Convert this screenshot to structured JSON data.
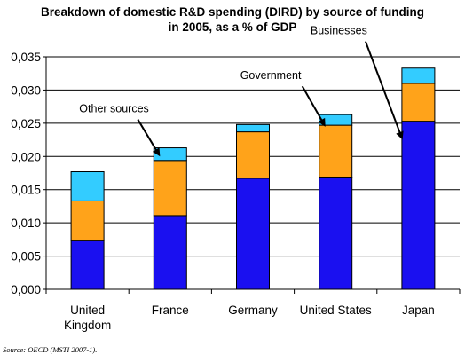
{
  "chart_data": {
    "type": "bar",
    "stacked": true,
    "title": [
      "Breakdown of domestic R&D spending (DIRD) by source of funding",
      "in 2005, as a % of GDP"
    ],
    "categories": [
      "United Kingdom",
      "France",
      "Germany",
      "United States",
      "Japan"
    ],
    "category_lines": [
      [
        "United",
        "Kingdom"
      ],
      [
        "France"
      ],
      [
        "Germany"
      ],
      [
        "United States"
      ],
      [
        "Japan"
      ]
    ],
    "series": [
      {
        "name": "Businesses",
        "color": "#1a10f0",
        "values": [
          0.0074,
          0.0111,
          0.0167,
          0.0169,
          0.0253
        ]
      },
      {
        "name": "Government",
        "color": "#ffa31a",
        "values": [
          0.0059,
          0.0083,
          0.007,
          0.0078,
          0.0057
        ]
      },
      {
        "name": "Other sources",
        "color": "#33ccff",
        "values": [
          0.0044,
          0.0019,
          0.0011,
          0.0016,
          0.0023
        ]
      }
    ],
    "ylim": [
      0,
      0.035
    ],
    "yticks": [
      "0,000",
      "0,005",
      "0,010",
      "0,015",
      "0,020",
      "0,025",
      "0,030",
      "0,035"
    ],
    "grid": true,
    "annotations": [
      {
        "text": "Other sources",
        "category": "France",
        "series": "Other sources"
      },
      {
        "text": "Government",
        "category": "United States",
        "series": "Government"
      },
      {
        "text": "Businesses",
        "category": "Japan",
        "series": "Businesses"
      }
    ],
    "source": "Source: OECD (MSTI 2007-1)."
  }
}
